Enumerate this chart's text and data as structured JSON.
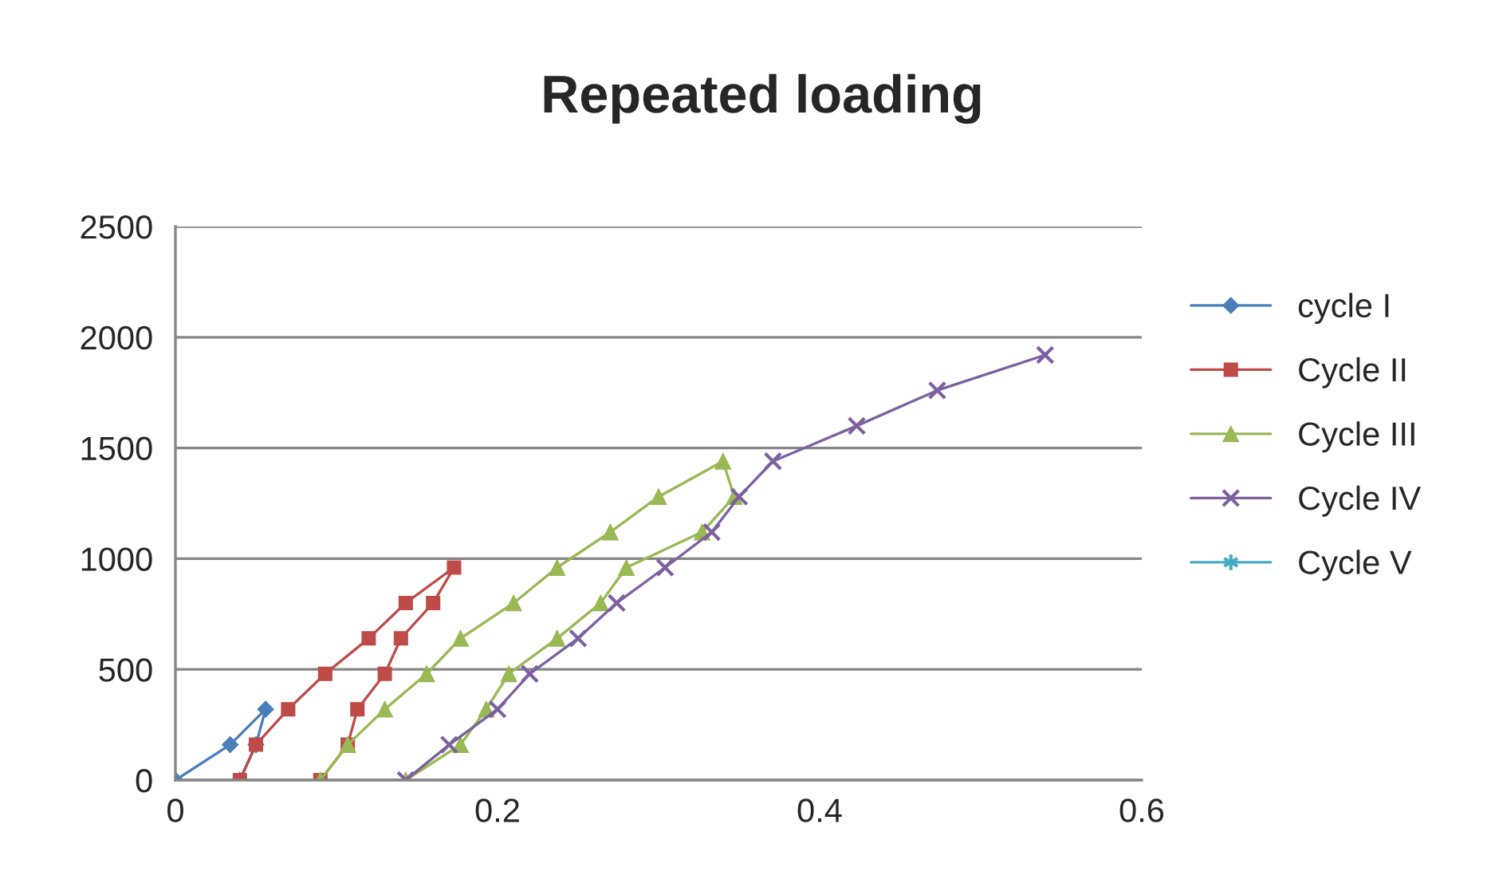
{
  "chart_data": {
    "type": "line",
    "title": "Repeated loading",
    "series": [
      {
        "name": "cycle I",
        "color": "#4a7ebb",
        "marker": "diamond",
        "x": [
          0,
          0.034,
          0.056,
          0.05,
          0.04
        ],
        "values": [
          0,
          160,
          320,
          160,
          0
        ]
      },
      {
        "name": "Cycle II",
        "color": "#be4b48",
        "marker": "square",
        "x": [
          0.04,
          0.05,
          0.07,
          0.093,
          0.12,
          0.143,
          0.173,
          0.16,
          0.14,
          0.13,
          0.113,
          0.107,
          0.09
        ],
        "values": [
          0,
          160,
          320,
          480,
          640,
          800,
          960,
          800,
          640,
          480,
          320,
          160,
          0
        ]
      },
      {
        "name": "Cycle III",
        "color": "#98b954",
        "marker": "triangle",
        "x": [
          0.09,
          0.107,
          0.13,
          0.156,
          0.177,
          0.21,
          0.237,
          0.27,
          0.3,
          0.34,
          0.347,
          0.327,
          0.28,
          0.264,
          0.237,
          0.207,
          0.193,
          0.177,
          0.143
        ],
        "values": [
          0,
          160,
          320,
          480,
          640,
          800,
          960,
          1120,
          1280,
          1440,
          1280,
          1120,
          960,
          800,
          640,
          480,
          320,
          160,
          0
        ]
      },
      {
        "name": "Cycle IV",
        "color": "#7d60a0",
        "marker": "cross",
        "x": [
          0.143,
          0.17,
          0.2,
          0.22,
          0.25,
          0.274,
          0.304,
          0.333,
          0.35,
          0.371,
          0.423,
          0.473,
          0.54
        ],
        "values": [
          0,
          160,
          320,
          480,
          640,
          800,
          960,
          1120,
          1280,
          1440,
          1600,
          1760,
          1920
        ]
      },
      {
        "name": "Cycle V",
        "color": "#46aac5",
        "marker": "star"
      }
    ],
    "xlim": [
      0,
      0.6
    ],
    "xticks": [
      0,
      0.2,
      0.4,
      0.6
    ],
    "ylim": [
      0,
      2500
    ],
    "yticks": [
      0,
      500,
      1000,
      1500,
      2000,
      2500
    ],
    "grid": "y",
    "legend": "right"
  }
}
